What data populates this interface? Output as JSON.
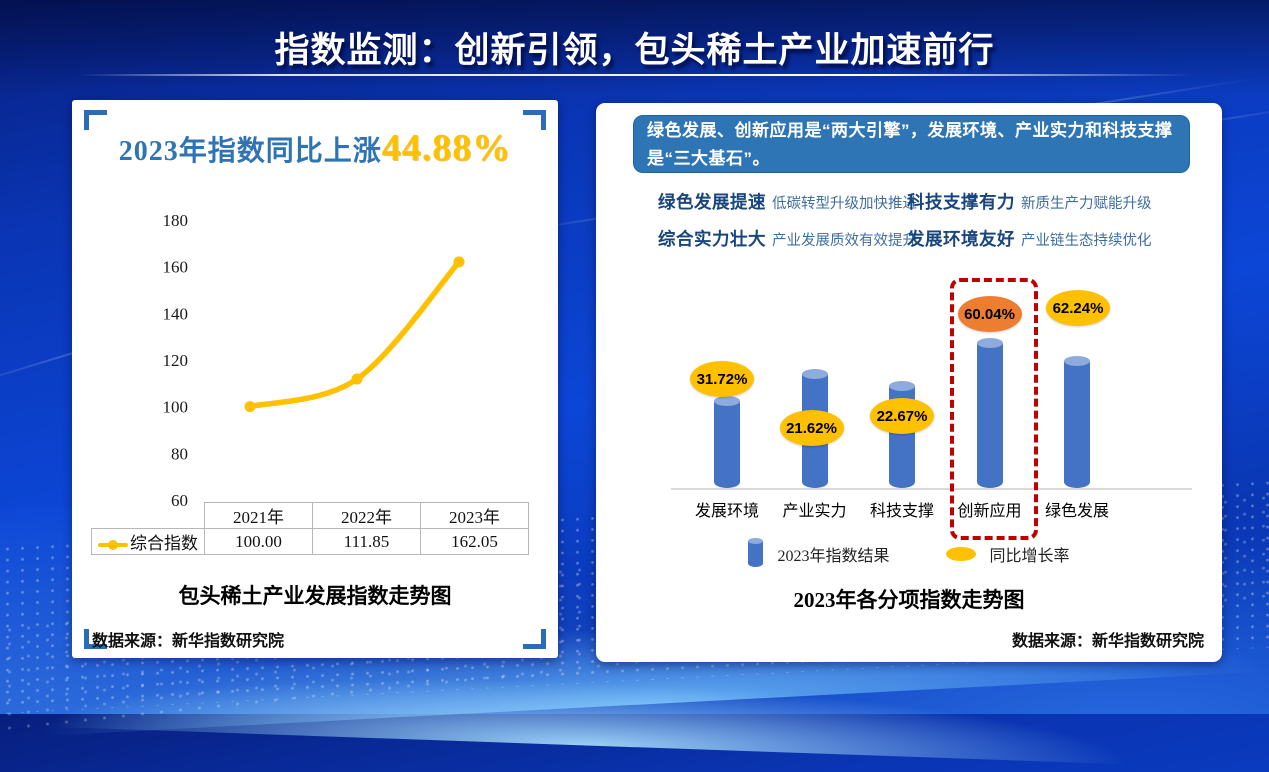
{
  "header": {
    "title": "指数监测：创新引领，包头稀土产业加速前行"
  },
  "left_panel": {
    "headline_prefix": "2023年指数同比上涨",
    "headline_value": "44.88%",
    "chart_caption": "包头稀土产业发展指数走势图",
    "data_source": "数据来源：新华指数研究院",
    "table": {
      "col_headers": [
        "2021年",
        "2022年",
        "2023年"
      ],
      "row_label": "综合指数",
      "values": [
        "100.00",
        "111.85",
        "162.05"
      ]
    }
  },
  "right_panel": {
    "banner": "绿色发展、创新应用是“两大引擎”，发展环境、产业实力和科技支撑是“三大基石”。",
    "features": [
      {
        "title": "绿色发展提速",
        "desc": "低碳转型升级加快推进"
      },
      {
        "title": "科技支撑有力",
        "desc": "新质生产力赋能升级"
      },
      {
        "title": "综合实力壮大",
        "desc": "产业发展质效有效提升"
      },
      {
        "title": "发展环境友好",
        "desc": "产业链生态持续优化"
      }
    ],
    "legend": [
      {
        "label": "2023年指数结果"
      },
      {
        "label": "同比增长率"
      }
    ],
    "chart_caption": "2023年各分项指数走势图",
    "data_source": "数据来源：新华指数研究院"
  },
  "chart_data": [
    {
      "type": "line",
      "title": "包头稀土产业发展指数走势图",
      "categories": [
        "2021年",
        "2022年",
        "2023年"
      ],
      "series": [
        {
          "name": "综合指数",
          "values": [
            100.0,
            111.85,
            162.05
          ]
        }
      ],
      "ylim": [
        60,
        180
      ],
      "y_ticks": [
        180,
        160,
        140,
        120,
        100,
        80,
        60
      ],
      "grid": false,
      "legend_position": "table-left",
      "line_color": "#FFC000",
      "annotation": "2023年指数同比上涨44.88%"
    },
    {
      "type": "bar",
      "title": "2023年各分项指数走势图",
      "categories": [
        "发展环境",
        "产业实力",
        "科技支撑",
        "创新应用",
        "绿色发展"
      ],
      "bar_heights_relative": [
        0.61,
        0.79,
        0.71,
        1.0,
        0.88
      ],
      "growth_labels": [
        "31.72%",
        "21.62%",
        "22.67%",
        "60.04%",
        "62.24%"
      ],
      "growth_values": [
        31.72,
        21.62,
        22.67,
        60.04,
        62.24
      ],
      "label_colors": [
        "#FFC000",
        "#FFC000",
        "#FFC000",
        "#ED7D31",
        "#FFC000"
      ],
      "bar_color": "#4472C4",
      "highlight_category": "创新应用",
      "highlight_color": "#C00000",
      "legend_position": "bottom",
      "series_names": [
        "2023年指数结果",
        "同比增长率"
      ]
    }
  ],
  "colors": {
    "title_text": "#FFFFFF",
    "accent_banner_blue": "#2E75B6",
    "headline_blue": "#2E74B5",
    "gold": "#FFC000",
    "orange": "#ED7D31",
    "bar_blue": "#4472C4",
    "bar_cap_blue": "#8FAADC",
    "highlight_red": "#C00000",
    "feature_heading_blue": "#17457C",
    "feature_desc_blue": "#3F6E9E"
  }
}
